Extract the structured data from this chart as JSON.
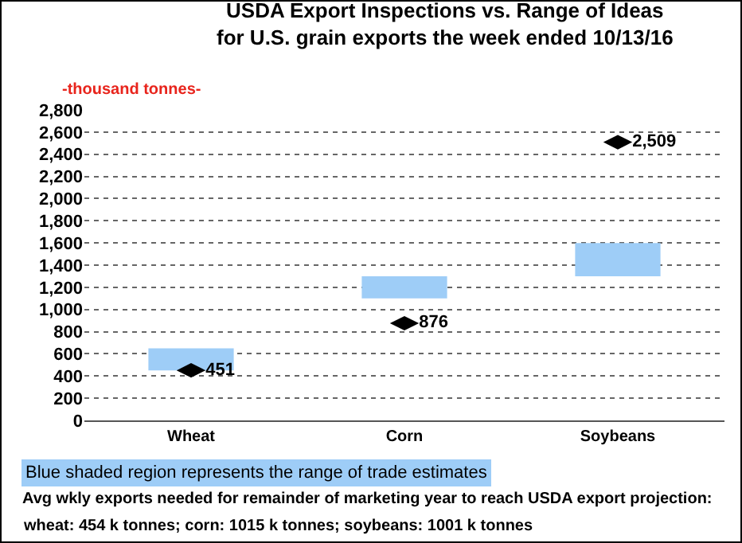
{
  "chart_data": {
    "type": "bar",
    "title": "USDA Export Inspections vs. Range of Ideas\nfor U.S. grain exports the week ended 10/13/16",
    "ylabel": "-thousand tonnes-",
    "categories": [
      "Wheat",
      "Corn",
      "Soybeans"
    ],
    "series": [
      {
        "type": "bar",
        "color": "#9ecdf7",
        "base": [
          450,
          1100,
          1300
        ],
        "values": [
          200,
          200,
          300
        ]
      },
      {
        "type": "scatter",
        "color": "#000000",
        "values": [
          451,
          876,
          2509
        ],
        "value_labels": [
          "451",
          "876",
          "2,509"
        ]
      }
    ],
    "ylim": [
      0,
      2800
    ],
    "yticks": [
      0,
      {
        "value": 200,
        "label": "200"
      },
      400,
      600,
      800,
      {
        "value": 1000,
        "label": "1,000"
      },
      {
        "value": 1200,
        "label": "1,200"
      },
      {
        "value": 1400,
        "label": "1,400"
      },
      {
        "value": 1600,
        "label": "1,600"
      },
      {
        "value": 1800,
        "label": "1,800"
      },
      {
        "value": 2000,
        "label": "2,000"
      },
      {
        "value": 2200,
        "label": "2,200"
      },
      {
        "value": 2400,
        "label": "2,400"
      },
      {
        "value": 2600,
        "label": "2,600"
      },
      {
        "value": 2800,
        "label": "2,800"
      }
    ],
    "grid": "y",
    "legend": false,
    "annotations": [
      "Blue shaded region represents the range of trade estimates",
      "Avg wkly exports needed for remainder of marketing year to reach USDA export projection:",
      "wheat: 454 k tonnes; corn: 1015 k tonnes; soybeans: 1001 k tonnes"
    ]
  }
}
